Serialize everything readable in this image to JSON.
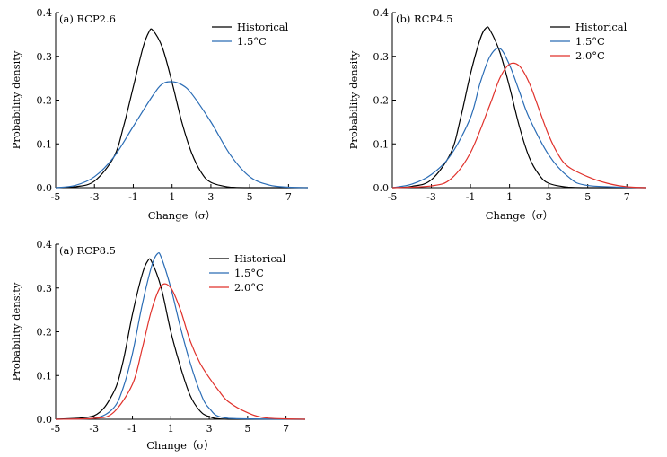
{
  "chart_data": [
    {
      "type": "line",
      "title": "(a) RCP2.6",
      "xlabel": "Change（σ）",
      "ylabel": "Probability density",
      "xlim": [
        -5,
        8
      ],
      "ylim": [
        0,
        0.4
      ],
      "xticks": [
        "-5",
        "-3",
        "-1",
        "1",
        "3",
        "5",
        "7"
      ],
      "yticks": [
        "0.0",
        "0.1",
        "0.2",
        "0.3",
        "0.4"
      ],
      "legend_position": "top-right",
      "series": [
        {
          "name": "Historical",
          "color": "#000000",
          "x": [
            -5,
            -4,
            -3,
            -2,
            -1.5,
            -1,
            -0.5,
            -0.2,
            0,
            0.5,
            1,
            1.5,
            2,
            2.5,
            3,
            4,
            5,
            8
          ],
          "y": [
            0,
            0.002,
            0.015,
            0.07,
            0.14,
            0.23,
            0.32,
            0.355,
            0.36,
            0.32,
            0.24,
            0.15,
            0.08,
            0.035,
            0.012,
            0.001,
            0,
            0
          ]
        },
        {
          "name": "1.5°C",
          "color": "#2a6cb5",
          "x": [
            -5,
            -4,
            -3,
            -2,
            -1,
            0,
            0.5,
            1,
            1.5,
            2,
            3,
            4,
            5,
            6,
            7,
            8
          ],
          "y": [
            0,
            0.005,
            0.025,
            0.07,
            0.14,
            0.21,
            0.237,
            0.242,
            0.235,
            0.215,
            0.15,
            0.075,
            0.025,
            0.006,
            0.001,
            0
          ]
        }
      ]
    },
    {
      "type": "line",
      "title": "(b) RCP4.5",
      "xlabel": "Change（σ）",
      "ylabel": "Probability density",
      "xlim": [
        -5,
        8
      ],
      "ylim": [
        0,
        0.4
      ],
      "xticks": [
        "-5",
        "-3",
        "-1",
        "1",
        "3",
        "5",
        "7"
      ],
      "yticks": [
        "0.0",
        "0.1",
        "0.2",
        "0.3",
        "0.4"
      ],
      "legend_position": "top-right",
      "series": [
        {
          "name": "Historical",
          "color": "#000000",
          "x": [
            -5,
            -4,
            -3,
            -2,
            -1.5,
            -1,
            -0.5,
            -0.2,
            0,
            0.5,
            1,
            1.5,
            2,
            2.5,
            3,
            4,
            5,
            8
          ],
          "y": [
            0,
            0.003,
            0.018,
            0.08,
            0.16,
            0.26,
            0.34,
            0.365,
            0.36,
            0.31,
            0.23,
            0.14,
            0.07,
            0.03,
            0.01,
            0.001,
            0,
            0
          ]
        },
        {
          "name": "1.5°C",
          "color": "#2a6cb5",
          "x": [
            -5,
            -4,
            -3,
            -2,
            -1,
            -0.5,
            0,
            0.5,
            1,
            1.5,
            2,
            3,
            4,
            5,
            8
          ],
          "y": [
            0,
            0.008,
            0.03,
            0.075,
            0.16,
            0.24,
            0.3,
            0.318,
            0.28,
            0.22,
            0.16,
            0.075,
            0.025,
            0.005,
            0
          ]
        },
        {
          "name": "2.0°C",
          "color": "#e0312b",
          "x": [
            -5,
            -3,
            -2,
            -1,
            0,
            0.5,
            1,
            1.5,
            2,
            2.5,
            3,
            3.5,
            4,
            5,
            6,
            7,
            8
          ],
          "y": [
            0,
            0.004,
            0.02,
            0.08,
            0.19,
            0.25,
            0.282,
            0.278,
            0.24,
            0.18,
            0.12,
            0.075,
            0.048,
            0.025,
            0.01,
            0.002,
            0
          ]
        }
      ]
    },
    {
      "type": "line",
      "title": "(a) RCP8.5",
      "xlabel": "Change（σ）",
      "ylabel": "Probability density",
      "xlim": [
        -5,
        8
      ],
      "ylim": [
        0,
        0.4
      ],
      "xticks": [
        "-5",
        "-3",
        "-1",
        "1",
        "3",
        "5",
        "7"
      ],
      "yticks": [
        "0.0",
        "0.1",
        "0.2",
        "0.3",
        "0.4"
      ],
      "legend_position": "top-right",
      "series": [
        {
          "name": "Historical",
          "color": "#000000",
          "x": [
            -5,
            -3,
            -2,
            -1.5,
            -1,
            -0.5,
            -0.2,
            0,
            0.5,
            1,
            1.5,
            2,
            2.5,
            3,
            4,
            8
          ],
          "y": [
            0,
            0.008,
            0.06,
            0.13,
            0.24,
            0.33,
            0.362,
            0.36,
            0.3,
            0.2,
            0.12,
            0.055,
            0.02,
            0.006,
            0,
            0
          ]
        },
        {
          "name": "1.5°C",
          "color": "#2a6cb5",
          "x": [
            -5,
            -3,
            -2,
            -1.5,
            -1,
            -0.5,
            0,
            0.3,
            0.5,
            1,
            1.5,
            2,
            2.5,
            3,
            4,
            8
          ],
          "y": [
            0,
            0.002,
            0.025,
            0.07,
            0.15,
            0.26,
            0.35,
            0.378,
            0.37,
            0.3,
            0.21,
            0.13,
            0.065,
            0.025,
            0.002,
            0
          ]
        },
        {
          "name": "2.0°C",
          "color": "#e0312b",
          "x": [
            -5,
            -3,
            -2,
            -1,
            -0.5,
            0,
            0.5,
            1,
            1.5,
            2,
            2.5,
            3,
            3.5,
            4,
            5,
            6,
            8
          ],
          "y": [
            0,
            0.002,
            0.015,
            0.08,
            0.16,
            0.25,
            0.305,
            0.3,
            0.25,
            0.18,
            0.13,
            0.095,
            0.065,
            0.04,
            0.015,
            0.003,
            0
          ]
        }
      ]
    }
  ]
}
